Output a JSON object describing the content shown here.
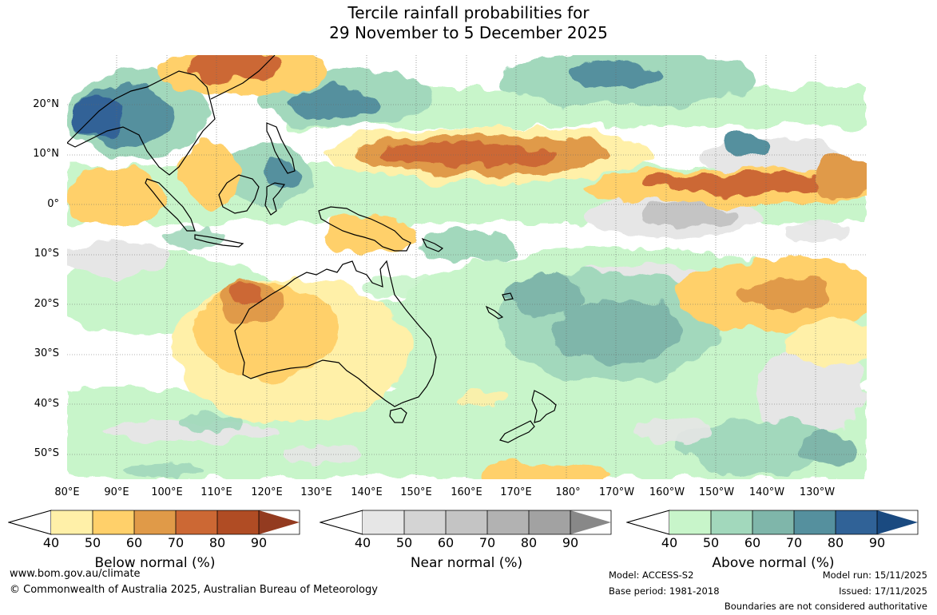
{
  "title_line1": "Tercile rainfall probabilities for",
  "title_line2": "29 November to 5 December 2025",
  "lat_labels": [
    "20°N",
    "10°N",
    "0°",
    "10°S",
    "20°S",
    "30°S",
    "40°S",
    "50°S"
  ],
  "lon_labels": [
    "80°E",
    "90°E",
    "100°E",
    "110°E",
    "120°E",
    "130°E",
    "140°E",
    "150°E",
    "160°E",
    "170°E",
    "180°",
    "170°W",
    "160°W",
    "150°W",
    "140°W",
    "130°W"
  ],
  "legend": {
    "ticks": [
      "40",
      "50",
      "60",
      "70",
      "80",
      "90"
    ],
    "below": {
      "title": "Below normal (%)",
      "colors": [
        "#fff0a8",
        "#ffd06a",
        "#e09a48",
        "#cc6834",
        "#b04c24",
        "#933b20"
      ]
    },
    "near": {
      "title": "Near normal (%)",
      "colors": [
        "#e6e6e6",
        "#d4d4d4",
        "#c4c4c4",
        "#b2b2b2",
        "#a2a2a2",
        "#888888"
      ]
    },
    "above": {
      "title": "Above normal (%)",
      "colors": [
        "#c8f5ca",
        "#a2d8bc",
        "#7fb6aa",
        "#55909e",
        "#306297",
        "#1a4a80"
      ]
    }
  },
  "footer": {
    "website": "www.bom.gov.au/climate",
    "copyright": "© Commonwealth of Australia 2025, Australian Bureau of Meteorology",
    "model": "Model: ACCESS-S2",
    "base_period": "Base period: 1981-2018",
    "model_run": "Model run: 15/11/2025",
    "issued": "Issued: 17/11/2025",
    "disclaimer": "Boundaries are not considered authoritative"
  }
}
